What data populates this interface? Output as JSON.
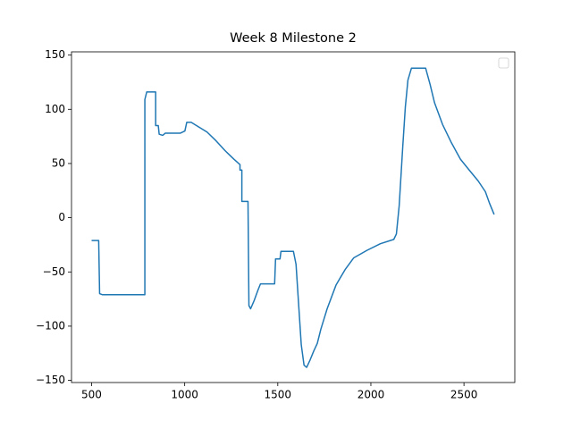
{
  "chart_data": {
    "type": "line",
    "title": "Week 8 Milestone 2",
    "x": [
      500,
      538,
      543,
      557,
      786,
      786,
      796,
      844,
      844,
      858,
      863,
      882,
      896,
      977,
      1001,
      1011,
      1035,
      1073,
      1120,
      1168,
      1216,
      1264,
      1297,
      1297,
      1307,
      1307,
      1340,
      1345,
      1354,
      1374,
      1393,
      1407,
      1483,
      1488,
      1512,
      1517,
      1584,
      1598,
      1612,
      1626,
      1641,
      1655,
      1674,
      1693,
      1712,
      1731,
      1765,
      1813,
      1861,
      1908,
      1980,
      2051,
      2123,
      2137,
      2152,
      2171,
      2185,
      2199,
      2218,
      2237,
      2294,
      2318,
      2342,
      2385,
      2433,
      2481,
      2528,
      2576,
      2615,
      2638,
      2662
    ],
    "series": [
      {
        "color": "#1f77b4",
        "values": [
          -21,
          -21,
          -70,
          -71,
          -71,
          109,
          116,
          116,
          85,
          85,
          77,
          76,
          78,
          78,
          80,
          88,
          88,
          84,
          79,
          71,
          62,
          54,
          49,
          44,
          44,
          15,
          15,
          -81,
          -84,
          -76,
          -67,
          -61,
          -61,
          -38,
          -38,
          -31,
          -31,
          -43,
          -80,
          -117,
          -136,
          -138,
          -131,
          -123,
          -116,
          -103,
          -84,
          -62,
          -48,
          -37,
          -30,
          -24,
          -20,
          -15,
          11,
          65,
          102,
          127,
          138,
          138,
          138,
          123,
          106,
          86,
          69,
          54,
          44,
          34,
          24,
          13,
          3
        ]
      }
    ],
    "xlim": [
      392,
      2773
    ],
    "ylim": [
      -152,
      153
    ],
    "xticks": [
      500,
      1000,
      1500,
      2000,
      2500
    ],
    "yticks": [
      {
        "value": -150,
        "label": "−150"
      },
      {
        "value": -100,
        "label": "−100"
      },
      {
        "value": -50,
        "label": "−50"
      },
      0,
      50,
      100,
      150
    ],
    "legend": "upper right"
  }
}
